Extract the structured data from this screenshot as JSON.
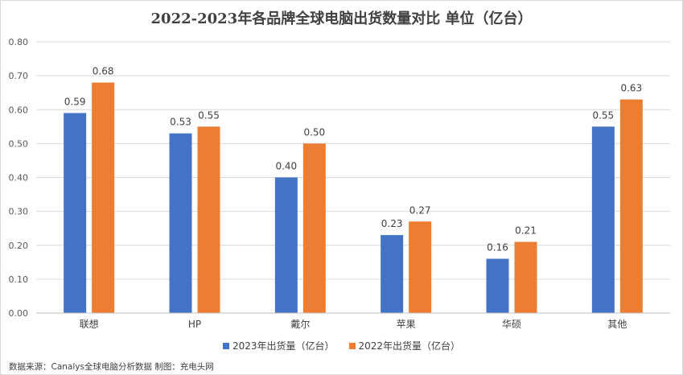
{
  "chart_data": {
    "type": "bar",
    "title": "2022-2023年各品牌全球电脑出货数量对比 单位（亿台）",
    "categories": [
      "联想",
      "HP",
      "戴尔",
      "苹果",
      "华硕",
      "其他"
    ],
    "series": [
      {
        "name": "2023年出货量（亿台）",
        "color": "#4472c4",
        "values": [
          0.59,
          0.53,
          0.4,
          0.23,
          0.16,
          0.55
        ]
      },
      {
        "name": "2022年出货量（亿台）",
        "color": "#ed7d31",
        "values": [
          0.68,
          0.55,
          0.5,
          0.27,
          0.21,
          0.63
        ]
      }
    ],
    "data_labels": [
      [
        "0.59",
        "0.53",
        "0.40",
        "0.23",
        "0.16",
        "0.55"
      ],
      [
        "0.68",
        "0.55",
        "0.50",
        "0.27",
        "0.21",
        "0.63"
      ]
    ],
    "yticks": [
      "0.00",
      "0.10",
      "0.20",
      "0.30",
      "0.40",
      "0.50",
      "0.60",
      "0.70",
      "0.80"
    ],
    "ylim": [
      0,
      0.8
    ],
    "grid": true,
    "legend_position": "bottom"
  },
  "source_note": "数据来源：Canalys全球电脑分析数据  制图：充电头网"
}
